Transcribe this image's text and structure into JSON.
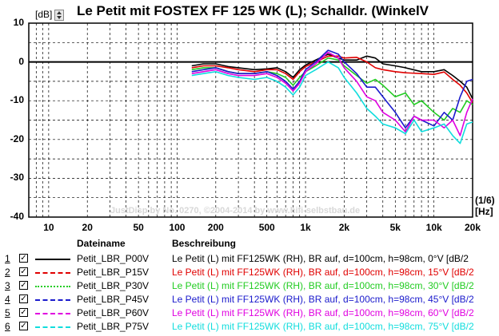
{
  "header": {
    "title": "Le Petit mit FOSTEX FF 125 WK (L); Schalldr. (WinkelV",
    "unit": "[dB]"
  },
  "watermark": "JustDisp by No. 0270, ©2004-2014 by www.hifi-selbstbau.de",
  "x_unit": {
    "line1": "(1/6)",
    "line2": "[Hz]"
  },
  "legend": {
    "col_name": "Dateiname",
    "col_desc": "Beschreibung",
    "rows": [
      {
        "num": "1",
        "check": "✓",
        "name": "Petit_LBR_P00V",
        "desc": "Le Petit (L) mit FF125WK (RH), BR auf, d=100cm, h=98cm, 0°V [dB/2",
        "color": "#000000",
        "dash": "solid"
      },
      {
        "num": "2",
        "check": "✓",
        "name": "Petit_LBR_P15V",
        "desc": "Le Petit (L) mit FF125WK (RH), BR auf, d=100cm, h=98cm, 15°V [dB/2",
        "color": "#e00000",
        "dash": "dashed"
      },
      {
        "num": "3",
        "check": "✓",
        "name": "Petit_LBR_P30V",
        "desc": "Le Petit (L) mit FF125WK (RH), BR auf, d=100cm, h=98cm, 30°V [dB/2",
        "color": "#22cc22",
        "dash": "dotted"
      },
      {
        "num": "4",
        "check": "✓",
        "name": "Petit_LBR_P45V",
        "desc": "Le Petit (L) mit FF125WK (RH), BR auf, d=100cm, h=98cm, 45°V [dB/2",
        "color": "#1a1acc",
        "dash": "dashdot"
      },
      {
        "num": "5",
        "check": "✓",
        "name": "Petit_LBR_P60V",
        "desc": "Le Petit (L) mit FF125WK (RH), BR auf, d=100cm, h=98cm, 60°V [dB/2",
        "color": "#e000e0",
        "dash": "dashdotdot"
      },
      {
        "num": "6",
        "check": "✓",
        "name": "Petit_LBR_P75V",
        "desc": "Le Petit (L) mit FF125WK (RH), BR auf, d=100cm, h=98cm, 75°V [dB/2",
        "color": "#11dddd",
        "dash": "longdash"
      }
    ]
  },
  "chart_data": {
    "type": "line",
    "title": "Le Petit mit FOSTEX FF 125 WK (L); Schalldr. (WinkelV",
    "xlabel": "(1/6) [Hz]",
    "ylabel": "[dB]",
    "xscale": "log",
    "xlim": [
      7,
      20000
    ],
    "ylim": [
      -40,
      10
    ],
    "xticks": [
      10,
      20,
      50,
      100,
      200,
      500,
      1000,
      2000,
      5000,
      10000,
      20000
    ],
    "xtick_labels": [
      "10",
      "20",
      "50",
      "100",
      "200",
      "500",
      "1k",
      "2k",
      "5k",
      "10k",
      "20k"
    ],
    "yticks": [
      10,
      0,
      -10,
      -20,
      -30,
      -40
    ],
    "ytick_labels": [
      "10",
      "0",
      "-10",
      "-20",
      "-30",
      "-40"
    ],
    "grid": true,
    "series": [
      {
        "name": "Petit_LBR_P00V",
        "color": "#000000",
        "x": [
          130,
          160,
          200,
          250,
          300,
          400,
          500,
          600,
          700,
          800,
          900,
          1000,
          1200,
          1500,
          1800,
          2000,
          2500,
          3000,
          3500,
          4000,
          5000,
          6000,
          8000,
          10000,
          12000,
          14000,
          16000,
          18000,
          20000
        ],
        "y": [
          -1.0,
          -0.5,
          -0.5,
          -1.2,
          -1.5,
          -2.0,
          -1.8,
          -1.5,
          -2.5,
          -4.0,
          -2.0,
          -0.8,
          0.5,
          2.0,
          1.0,
          0.5,
          0.5,
          1.5,
          1.0,
          -0.5,
          -1.0,
          -1.5,
          -2.5,
          -2.5,
          -2.0,
          -3.5,
          -5.0,
          -6.5,
          -9.5
        ]
      },
      {
        "name": "Petit_LBR_P15V",
        "color": "#e00000",
        "x": [
          130,
          160,
          200,
          250,
          300,
          400,
          500,
          600,
          700,
          800,
          900,
          1000,
          1200,
          1500,
          1800,
          2000,
          2500,
          3000,
          3500,
          4000,
          5000,
          6000,
          8000,
          10000,
          12000,
          14000,
          16000,
          18000,
          20000
        ],
        "y": [
          -1.5,
          -1.0,
          -1.0,
          -1.5,
          -2.0,
          -2.5,
          -2.0,
          -2.0,
          -3.0,
          -4.5,
          -2.5,
          -1.2,
          0.0,
          1.5,
          1.5,
          1.0,
          1.2,
          0.0,
          -1.5,
          -2.0,
          -2.5,
          -2.8,
          -3.0,
          -3.2,
          -2.6,
          -4.5,
          -6.0,
          -8.0,
          -10.5
        ]
      },
      {
        "name": "Petit_LBR_P30V",
        "color": "#22cc22",
        "x": [
          130,
          160,
          200,
          250,
          300,
          400,
          500,
          600,
          700,
          800,
          900,
          1000,
          1200,
          1500,
          1800,
          2000,
          2500,
          3000,
          3500,
          4000,
          5000,
          6000,
          7000,
          8000,
          10000,
          12000,
          14000,
          16000,
          18000,
          20000
        ],
        "y": [
          -2.0,
          -1.5,
          -1.5,
          -2.5,
          -3.0,
          -3.0,
          -2.5,
          -3.0,
          -4.0,
          -6.0,
          -4.0,
          -2.5,
          -1.0,
          1.0,
          0.5,
          -1.0,
          -3.5,
          -5.5,
          -4.5,
          -6.0,
          -9.0,
          -8.0,
          -11.0,
          -10.0,
          -13.0,
          -15.0,
          -12.0,
          -13.0,
          -10.0,
          -11.0
        ]
      },
      {
        "name": "Petit_LBR_P45V",
        "color": "#1a1acc",
        "x": [
          130,
          160,
          200,
          250,
          300,
          400,
          500,
          600,
          700,
          800,
          900,
          1000,
          1200,
          1500,
          1800,
          2000,
          2500,
          3000,
          3500,
          4000,
          5000,
          6000,
          7000,
          8000,
          10000,
          12000,
          14000,
          16000,
          18000,
          20000
        ],
        "y": [
          -2.5,
          -2.0,
          -1.5,
          -2.5,
          -3.0,
          -3.0,
          -2.5,
          -3.5,
          -5.0,
          -7.0,
          -5.0,
          -2.0,
          0.0,
          3.0,
          2.0,
          0.0,
          -3.0,
          -6.5,
          -6.5,
          -9.0,
          -13.0,
          -17.0,
          -14.0,
          -15.0,
          -16.5,
          -13.0,
          -15.0,
          -9.0,
          -5.0,
          -4.5
        ]
      },
      {
        "name": "Petit_LBR_P60V",
        "color": "#e000e0",
        "x": [
          130,
          160,
          200,
          250,
          300,
          400,
          500,
          600,
          700,
          800,
          900,
          1000,
          1200,
          1500,
          1800,
          2000,
          2500,
          3000,
          3500,
          4000,
          5000,
          6000,
          7000,
          8000,
          10000,
          12000,
          14000,
          16000,
          18000,
          20000
        ],
        "y": [
          -3.0,
          -2.5,
          -2.0,
          -3.0,
          -3.5,
          -3.5,
          -3.0,
          -4.0,
          -5.5,
          -7.5,
          -5.5,
          -2.5,
          -0.5,
          2.5,
          1.0,
          -1.5,
          -5.0,
          -9.0,
          -10.0,
          -13.0,
          -15.0,
          -18.0,
          -14.0,
          -15.0,
          -15.0,
          -17.0,
          -15.0,
          -19.0,
          -13.0,
          -9.5
        ]
      },
      {
        "name": "Petit_LBR_P75V",
        "color": "#11dddd",
        "x": [
          130,
          160,
          200,
          250,
          300,
          400,
          500,
          600,
          700,
          800,
          900,
          1000,
          1200,
          1500,
          1800,
          2000,
          2500,
          3000,
          3500,
          4000,
          5000,
          6000,
          7000,
          8000,
          10000,
          12000,
          14000,
          16000,
          18000,
          20000
        ],
        "y": [
          -3.5,
          -3.0,
          -2.5,
          -3.5,
          -4.0,
          -4.5,
          -4.0,
          -5.0,
          -6.5,
          -8.5,
          -6.5,
          -3.5,
          -2.0,
          0.0,
          -1.5,
          -4.0,
          -8.0,
          -12.0,
          -14.0,
          -16.0,
          -17.0,
          -18.5,
          -15.0,
          -18.0,
          -17.0,
          -16.0,
          -19.0,
          -21.0,
          -16.0,
          -15.5
        ]
      }
    ]
  }
}
